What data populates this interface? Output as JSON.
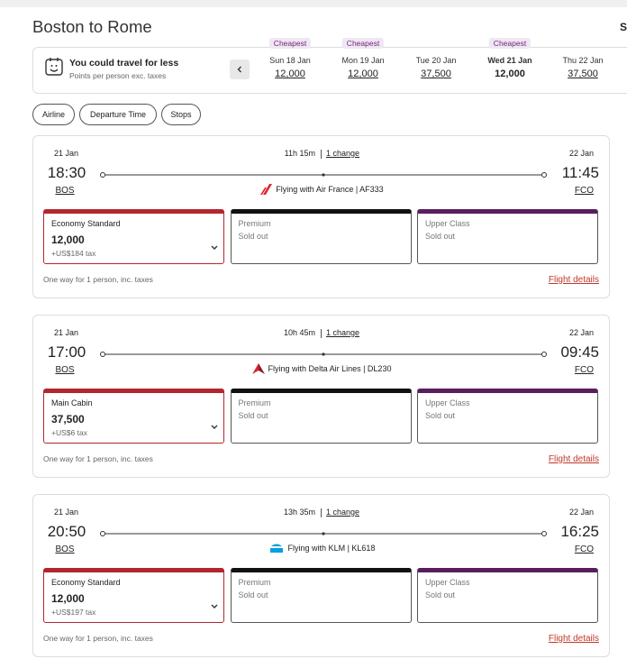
{
  "header": {
    "title": "Boston to Rome",
    "cut_text": "S"
  },
  "date_strip": {
    "promo_title": "You could travel for less",
    "promo_subtitle": "Points per person exc. taxes",
    "dates": [
      {
        "badge": "Cheapest",
        "date": "Sun 18 Jan",
        "points": "12,000"
      },
      {
        "badge": "Cheapest",
        "date": "Mon 19 Jan",
        "points": "12,000"
      },
      {
        "date": "Tue 20 Jan",
        "points": "37,500"
      },
      {
        "badge": "Cheapest",
        "date": "Wed 21 Jan",
        "points": "12,000",
        "selected": true
      },
      {
        "date": "Thu 22 Jan",
        "points": "37,500"
      }
    ]
  },
  "filters": [
    "Airline",
    "Departure Time",
    "Stops"
  ],
  "flights": [
    {
      "depart_date": "21 Jan",
      "depart_time": "18:30",
      "depart_airport": "BOS",
      "duration": "11h 15m",
      "changes": "1 change",
      "arrive_date": "22 Jan",
      "arrive_time": "11:45",
      "arrive_airport": "FCO",
      "carrier_text": "Flying with Air France | AF333",
      "fares": [
        {
          "name": "Economy Standard",
          "points": "12,000",
          "tax": "+US$184 tax"
        },
        {
          "name": "Premium",
          "status": "Sold out"
        },
        {
          "name": "Upper Class",
          "status": "Sold out"
        }
      ],
      "footnote": "One way for 1 person, inc. taxes",
      "details_link": "Flight details"
    },
    {
      "depart_date": "21 Jan",
      "depart_time": "17:00",
      "depart_airport": "BOS",
      "duration": "10h 45m",
      "changes": "1 change",
      "arrive_date": "22 Jan",
      "arrive_time": "09:45",
      "arrive_airport": "FCO",
      "carrier_text": "Flying with Delta Air Lines | DL230",
      "fares": [
        {
          "name": "Main Cabin",
          "points": "37,500",
          "tax": "+US$6 tax"
        },
        {
          "name": "Premium",
          "status": "Sold out"
        },
        {
          "name": "Upper Class",
          "status": "Sold out"
        }
      ],
      "footnote": "One way for 1 person, inc. taxes",
      "details_link": "Flight details"
    },
    {
      "depart_date": "21 Jan",
      "depart_time": "20:50",
      "depart_airport": "BOS",
      "duration": "13h 35m",
      "changes": "1 change",
      "arrive_date": "22 Jan",
      "arrive_time": "16:25",
      "arrive_airport": "FCO",
      "carrier_text": "Flying with KLM | KL618",
      "fares": [
        {
          "name": "Economy Standard",
          "points": "12,000",
          "tax": "+US$197 tax"
        },
        {
          "name": "Premium",
          "status": "Sold out"
        },
        {
          "name": "Upper Class",
          "status": "Sold out"
        }
      ],
      "footnote": "One way for 1 person, inc. taxes",
      "details_link": "Flight details"
    }
  ]
}
